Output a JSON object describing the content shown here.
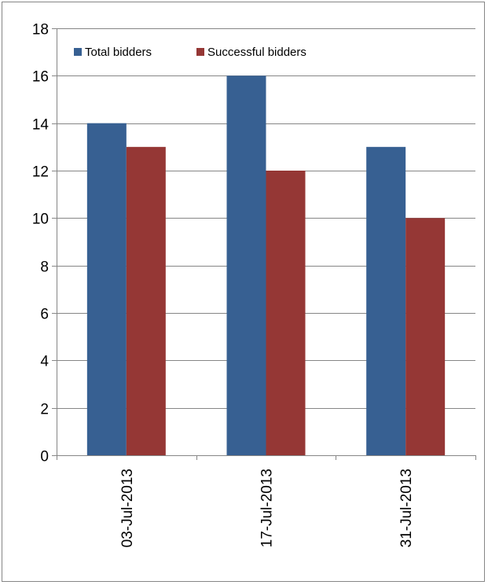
{
  "chart_data": {
    "type": "bar",
    "categories": [
      "03-Jul-2013",
      "17-Jul-2013",
      "31-Jul-2013"
    ],
    "series": [
      {
        "name": "Total bidders",
        "color": "#376092",
        "values": [
          14,
          16,
          13
        ]
      },
      {
        "name": "Successful bidders",
        "color": "#953735",
        "values": [
          13,
          12,
          10
        ]
      }
    ],
    "title": "",
    "xlabel": "",
    "ylabel": "",
    "ylim": [
      0,
      18
    ],
    "yticks": [
      0,
      2,
      4,
      6,
      8,
      10,
      12,
      14,
      16,
      18
    ],
    "grid": true,
    "legend_position": "top-left"
  }
}
